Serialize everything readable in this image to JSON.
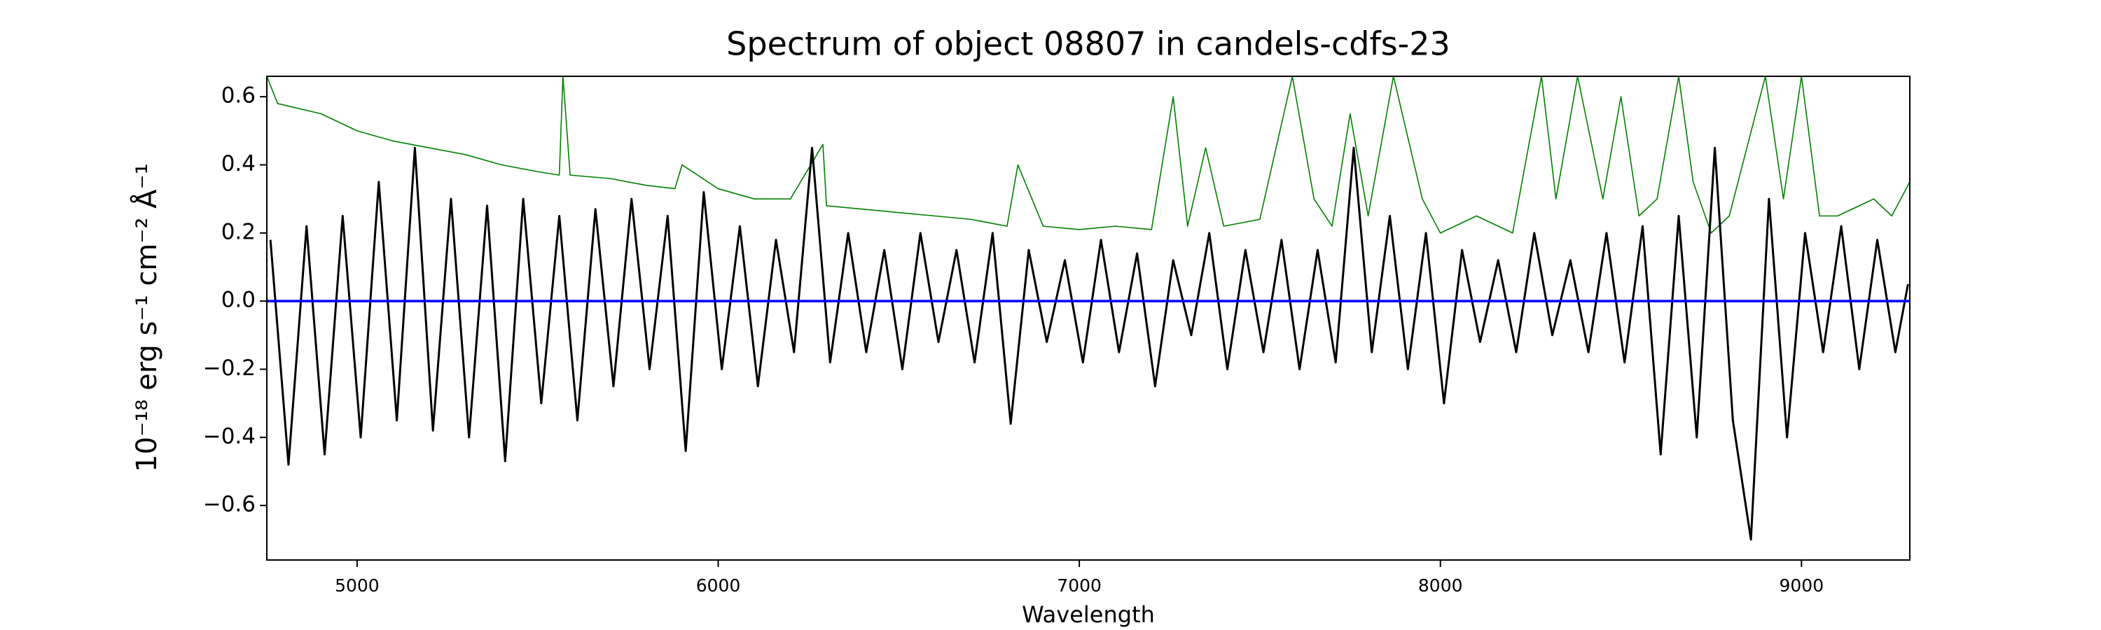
{
  "chart_data": {
    "type": "line",
    "title": "Spectrum of object 08807 in candels-cdfs-23",
    "xlabel": "Wavelength",
    "ylabel": "10⁻¹⁸ erg s⁻¹ cm⁻² Å⁻¹",
    "xlim": [
      4750,
      9300
    ],
    "ylim": [
      -0.76,
      0.66
    ],
    "xticks": [
      5000,
      6000,
      7000,
      8000,
      9000
    ],
    "yticks": [
      {
        "value": -0.6,
        "label": "−0.6"
      },
      {
        "value": -0.4,
        "label": "−0.4"
      },
      {
        "value": -0.2,
        "label": "−0.2"
      },
      {
        "value": 0,
        "label": "0.0"
      },
      0.2,
      0.4,
      0.6
    ],
    "grid": false,
    "series": [
      {
        "color": "#008000",
        "x": [
          4750,
          4780,
          4900,
          5000,
          5100,
          5200,
          5300,
          5400,
          5500,
          5560,
          5570,
          5590,
          5700,
          5800,
          5880,
          5900,
          6000,
          6100,
          6200,
          6290,
          6300,
          6400,
          6500,
          6600,
          6700,
          6800,
          6830,
          6900,
          7000,
          7100,
          7200,
          7260,
          7300,
          7350,
          7400,
          7500,
          7590,
          7650,
          7700,
          7750,
          7800,
          7870,
          7950,
          8000,
          8100,
          8200,
          8280,
          8320,
          8380,
          8450,
          8500,
          8550,
          8600,
          8660,
          8700,
          8750,
          8800,
          8900,
          8950,
          9000,
          9050,
          9100,
          9200,
          9250,
          9300
        ],
        "values": [
          0.66,
          0.58,
          0.55,
          0.5,
          0.47,
          0.45,
          0.43,
          0.4,
          0.38,
          0.37,
          0.66,
          0.37,
          0.36,
          0.34,
          0.33,
          0.4,
          0.33,
          0.3,
          0.3,
          0.46,
          0.28,
          0.27,
          0.26,
          0.25,
          0.24,
          0.22,
          0.4,
          0.22,
          0.21,
          0.22,
          0.21,
          0.6,
          0.22,
          0.45,
          0.22,
          0.24,
          0.66,
          0.3,
          0.22,
          0.55,
          0.25,
          0.66,
          0.3,
          0.2,
          0.25,
          0.2,
          0.66,
          0.3,
          0.66,
          0.3,
          0.6,
          0.25,
          0.3,
          0.66,
          0.35,
          0.2,
          0.25,
          0.66,
          0.3,
          0.66,
          0.25,
          0.25,
          0.3,
          0.25,
          0.35
        ]
      },
      {
        "color": "#000000",
        "x": [
          4760,
          4810,
          4860,
          4910,
          4960,
          5010,
          5060,
          5110,
          5160,
          5210,
          5260,
          5310,
          5360,
          5410,
          5460,
          5510,
          5560,
          5610,
          5660,
          5710,
          5760,
          5810,
          5860,
          5910,
          5960,
          6010,
          6060,
          6110,
          6160,
          6210,
          6260,
          6310,
          6360,
          6410,
          6460,
          6510,
          6560,
          6610,
          6660,
          6710,
          6760,
          6810,
          6860,
          6910,
          6960,
          7010,
          7060,
          7110,
          7160,
          7210,
          7260,
          7310,
          7360,
          7410,
          7460,
          7510,
          7560,
          7610,
          7660,
          7710,
          7760,
          7810,
          7860,
          7910,
          7960,
          8010,
          8060,
          8110,
          8160,
          8210,
          8260,
          8310,
          8360,
          8410,
          8460,
          8510,
          8560,
          8610,
          8660,
          8710,
          8760,
          8810,
          8860,
          8910,
          8960,
          9010,
          9060,
          9110,
          9160,
          9210,
          9260,
          9295
        ],
        "values": [
          0.18,
          -0.48,
          0.22,
          -0.45,
          0.25,
          -0.4,
          0.35,
          -0.35,
          0.45,
          -0.38,
          0.3,
          -0.4,
          0.28,
          -0.47,
          0.3,
          -0.3,
          0.25,
          -0.35,
          0.27,
          -0.25,
          0.3,
          -0.2,
          0.25,
          -0.44,
          0.32,
          -0.2,
          0.22,
          -0.25,
          0.18,
          -0.15,
          0.45,
          -0.18,
          0.2,
          -0.15,
          0.15,
          -0.2,
          0.2,
          -0.12,
          0.15,
          -0.18,
          0.2,
          -0.36,
          0.15,
          -0.12,
          0.12,
          -0.18,
          0.18,
          -0.15,
          0.14,
          -0.25,
          0.12,
          -0.1,
          0.2,
          -0.2,
          0.15,
          -0.15,
          0.18,
          -0.2,
          0.15,
          -0.18,
          0.45,
          -0.15,
          0.25,
          -0.2,
          0.2,
          -0.3,
          0.15,
          -0.12,
          0.12,
          -0.15,
          0.2,
          -0.1,
          0.12,
          -0.15,
          0.2,
          -0.18,
          0.22,
          -0.45,
          0.25,
          -0.4,
          0.45,
          -0.35,
          -0.7,
          0.3,
          -0.4,
          0.2,
          -0.15,
          0.22,
          -0.2,
          0.18,
          -0.15,
          0.05
        ]
      },
      {
        "color": "#0000ff",
        "x": [
          4750,
          9300
        ],
        "values": [
          0,
          0
        ]
      }
    ]
  }
}
